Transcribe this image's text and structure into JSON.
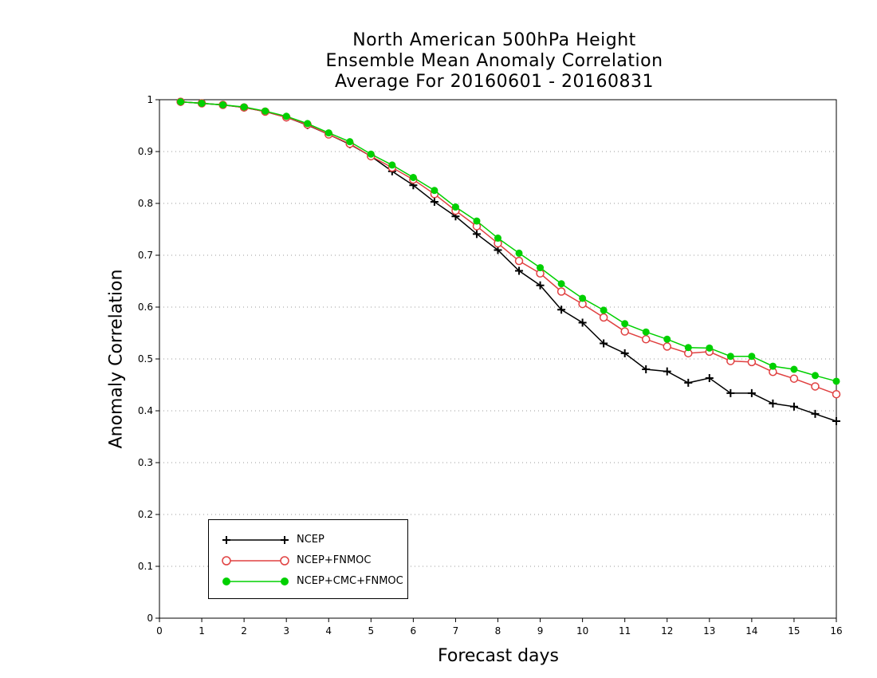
{
  "chart_data": {
    "type": "line",
    "title": [
      "North American 500hPa Height",
      "Ensemble Mean Anomaly Correlation",
      "Average For 20160601 - 20160831"
    ],
    "xlabel": "Forecast days",
    "ylabel": "Anomaly Correlation",
    "xlim": [
      0,
      16
    ],
    "ylim": [
      0,
      1
    ],
    "xticks": [
      "0",
      "1",
      "2",
      "3",
      "4",
      "5",
      "6",
      "7",
      "8",
      "9",
      "10",
      "11",
      "12",
      "13",
      "14",
      "15",
      "16"
    ],
    "yticks": [
      "0",
      "0.1",
      "0.2",
      "0.3",
      "0.4",
      "0.5",
      "0.6",
      "0.7",
      "0.8",
      "0.9",
      "1"
    ],
    "grid": "horizontal dotted",
    "legend_position": "bottom-left",
    "x": [
      0.5,
      1,
      1.5,
      2,
      2.5,
      3,
      3.5,
      4,
      4.5,
      5,
      5.5,
      6,
      6.5,
      7,
      7.5,
      8,
      8.5,
      9,
      9.5,
      10,
      10.5,
      11,
      11.5,
      12,
      12.5,
      13,
      13.5,
      14,
      14.5,
      15,
      15.5,
      16
    ],
    "series": [
      {
        "name": "NCEP",
        "color": "#000000",
        "marker": "plus",
        "values": [
          0.996,
          0.993,
          0.99,
          0.985,
          0.977,
          0.966,
          0.951,
          0.933,
          0.914,
          0.891,
          0.862,
          0.835,
          0.803,
          0.775,
          0.741,
          0.71,
          0.67,
          0.642,
          0.595,
          0.57,
          0.53,
          0.511,
          0.48,
          0.476,
          0.454,
          0.463,
          0.434,
          0.434,
          0.414,
          0.408,
          0.394,
          0.38
        ]
      },
      {
        "name": "NCEP+FNMOC",
        "color": "#e04040",
        "marker": "open-circle",
        "values": [
          0.996,
          0.993,
          0.99,
          0.985,
          0.977,
          0.966,
          0.952,
          0.933,
          0.915,
          0.891,
          0.869,
          0.846,
          0.818,
          0.786,
          0.756,
          0.723,
          0.689,
          0.665,
          0.63,
          0.606,
          0.58,
          0.553,
          0.538,
          0.524,
          0.511,
          0.514,
          0.496,
          0.494,
          0.475,
          0.462,
          0.447,
          0.432
        ]
      },
      {
        "name": "NCEP+CMC+FNMOC",
        "color": "#00d000",
        "marker": "filled-circle",
        "values": [
          0.996,
          0.993,
          0.99,
          0.986,
          0.978,
          0.968,
          0.954,
          0.936,
          0.919,
          0.895,
          0.874,
          0.85,
          0.825,
          0.793,
          0.766,
          0.733,
          0.704,
          0.676,
          0.645,
          0.617,
          0.594,
          0.568,
          0.552,
          0.538,
          0.522,
          0.521,
          0.505,
          0.505,
          0.486,
          0.48,
          0.468,
          0.457
        ]
      }
    ]
  }
}
